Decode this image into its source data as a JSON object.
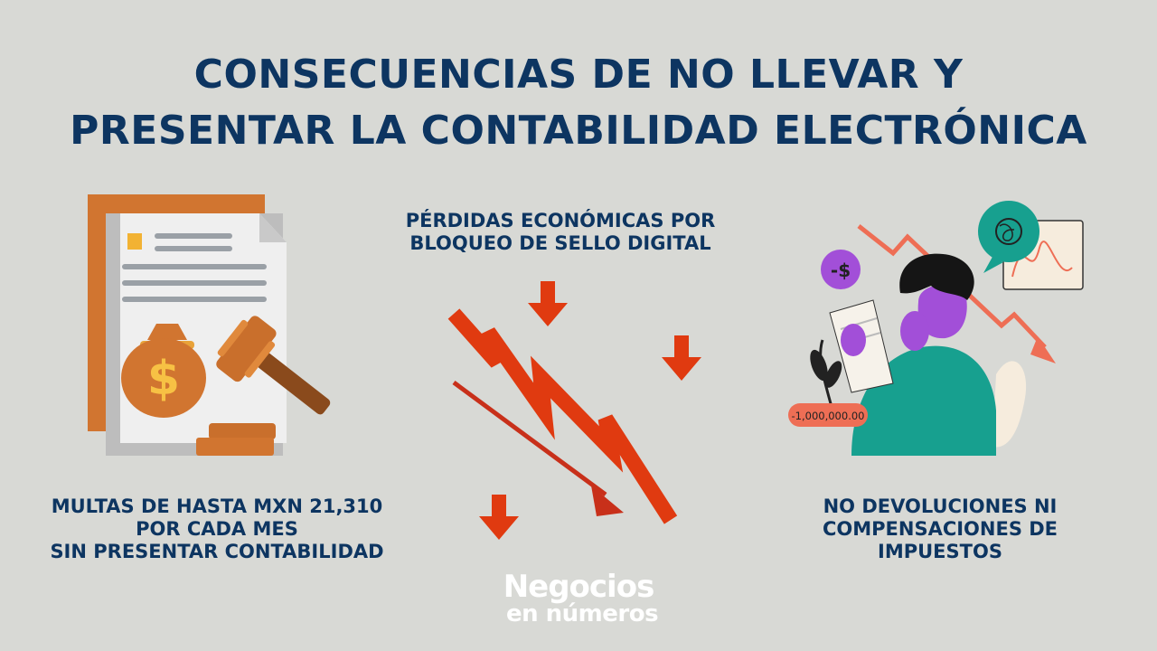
{
  "title": {
    "line1": "CONSECUENCIAS DE NO LLEVAR Y",
    "line2": "PRESENTAR LA CONTABILIDAD ELECTRÓNICA"
  },
  "left": {
    "icons": [
      "document-icon",
      "money-bag-icon",
      "gavel-icon"
    ],
    "dollar_sign": "$",
    "caption": {
      "line1": "MULTAS DE HASTA MXN 21,310",
      "line2": "POR CADA MES",
      "line3": "SIN PRESENTAR CONTABILIDAD"
    }
  },
  "center": {
    "icons": [
      "falling-chart-icon",
      "down-arrow-icon"
    ],
    "caption": {
      "line1": "PÉRDIDAS ECONÓMICAS POR",
      "line2": "BLOQUEO DE SELLO DIGITAL"
    }
  },
  "right": {
    "icons": [
      "stressed-person-icon",
      "speech-bubble-icon",
      "chart-card-icon"
    ],
    "minus_dollar": "-$",
    "amount_badge": "-1,000,000.00",
    "caption": {
      "line1": "NO DEVOLUCIONES NI",
      "line2": "COMPENSACIONES DE",
      "line3": "IMPUESTOS"
    }
  },
  "logo": {
    "line1": "Negocios",
    "line2": "en números"
  },
  "colors": {
    "background": "#d8d9d5",
    "title": "#0d3561",
    "arrow_red": "#e03a10",
    "document_orange": "#d47a33",
    "person_green": "#17a08f",
    "person_purple": "#a24fd8",
    "logo": "#ffffff"
  }
}
